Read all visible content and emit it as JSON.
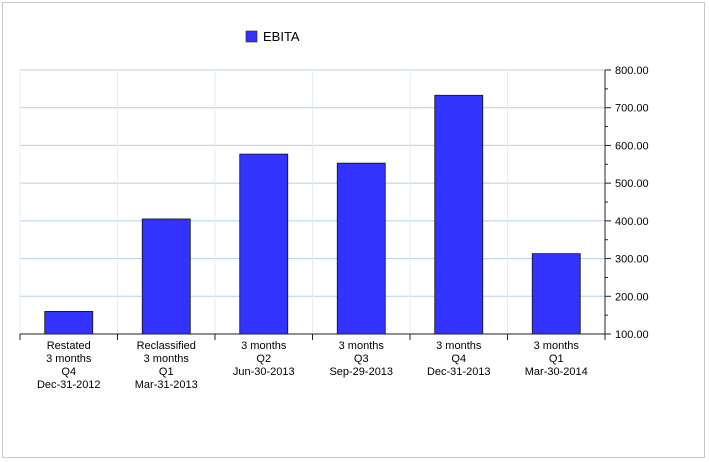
{
  "chart_data": {
    "type": "bar",
    "title": "",
    "xlabel": "",
    "ylabel": "",
    "categories": [
      [
        "Restated",
        "3 months",
        "Q4",
        "Dec-31-2012"
      ],
      [
        "Reclassified",
        "3 months",
        "Q1",
        "Mar-31-2013"
      ],
      [
        "3 months",
        "Q2",
        "Jun-30-2013"
      ],
      [
        "3 months",
        "Q3",
        "Sep-29-2013"
      ],
      [
        "3 months",
        "Q4",
        "Dec-31-2013"
      ],
      [
        "3 months",
        "Q1",
        "Mar-30-2014"
      ]
    ],
    "series": [
      {
        "name": "EBITA",
        "color": "#3333ff",
        "values": [
          160,
          405,
          577,
          553,
          733,
          313
        ]
      }
    ],
    "ylim": [
      100,
      800
    ],
    "y_ticks": [
      "100.00",
      "200.00",
      "300.00",
      "400.00",
      "500.00",
      "600.00",
      "700.00",
      "800.00"
    ],
    "y_axis_position": "right",
    "grid": true,
    "legend_position": "top"
  }
}
